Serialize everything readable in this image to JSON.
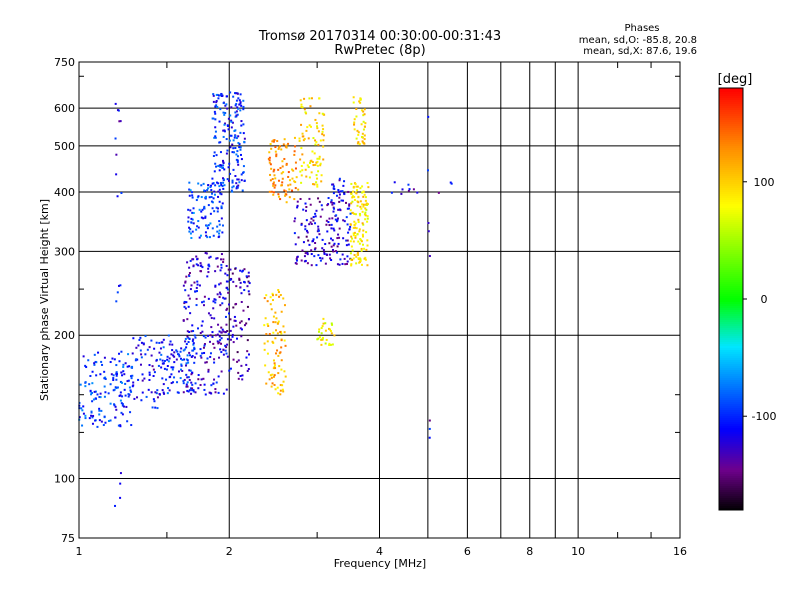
{
  "chart_data": {
    "type": "scatter",
    "title": "Tromsø 20170314 00:30:00-00:31:43",
    "subtitle": "RwPretec (8p)",
    "xlabel": "Frequency [MHz]",
    "ylabel": "Stationary phase Virtual Height [km]",
    "x_scale": "log",
    "y_scale": "log",
    "xlim": [
      1,
      16
    ],
    "ylim": [
      75,
      750
    ],
    "x_ticks": [
      "1",
      "2",
      "4",
      "6",
      "8",
      "10",
      "16"
    ],
    "y_ticks": [
      "75",
      "100",
      "200",
      "300",
      "400",
      "500",
      "600",
      "750"
    ],
    "grid": true,
    "stats": {
      "heading": "Phases",
      "o_line": "mean, sd,O: -85.8, 20.8",
      "x_line": "mean, sd,X:  87.6, 19.6"
    },
    "colorbar": {
      "label": "[deg]",
      "range": [
        -180,
        180
      ],
      "ticks": [
        "100",
        "0",
        "-100"
      ]
    },
    "clusters": [
      {
        "fmin": 1.0,
        "fmax": 1.28,
        "hmin": 128,
        "hmax": 185,
        "phase": -95,
        "n": 150
      },
      {
        "fmin": 1.28,
        "fmax": 1.45,
        "hmin": 140,
        "hmax": 200,
        "phase": -110,
        "n": 60
      },
      {
        "fmin": 1.45,
        "fmax": 1.72,
        "hmin": 150,
        "hmax": 200,
        "phase": -100,
        "n": 110
      },
      {
        "fmin": 1.62,
        "fmax": 2.0,
        "hmin": 150,
        "hmax": 300,
        "phase": -120,
        "n": 220
      },
      {
        "fmin": 1.65,
        "fmax": 1.95,
        "hmin": 320,
        "hmax": 420,
        "phase": -90,
        "n": 110
      },
      {
        "fmin": 1.85,
        "fmax": 2.15,
        "hmin": 400,
        "hmax": 650,
        "phase": -100,
        "n": 190
      },
      {
        "fmin": 1.95,
        "fmax": 2.2,
        "hmin": 160,
        "hmax": 280,
        "phase": -130,
        "n": 90
      },
      {
        "fmin": 2.35,
        "fmax": 2.6,
        "hmin": 150,
        "hmax": 250,
        "phase": 110,
        "n": 90
      },
      {
        "fmin": 2.4,
        "fmax": 2.75,
        "hmin": 380,
        "hmax": 520,
        "phase": 125,
        "n": 90
      },
      {
        "fmin": 2.75,
        "fmax": 3.1,
        "hmin": 410,
        "hmax": 630,
        "phase": 95,
        "n": 90
      },
      {
        "fmin": 2.7,
        "fmax": 3.5,
        "hmin": 280,
        "hmax": 390,
        "phase": -125,
        "n": 160
      },
      {
        "fmin": 3.0,
        "fmax": 3.25,
        "hmin": 190,
        "hmax": 220,
        "phase": 80,
        "n": 30
      },
      {
        "fmin": 3.5,
        "fmax": 3.8,
        "hmin": 280,
        "hmax": 420,
        "phase": 90,
        "n": 130
      },
      {
        "fmin": 3.55,
        "fmax": 3.75,
        "hmin": 500,
        "hmax": 640,
        "phase": 95,
        "n": 40
      },
      {
        "fmin": 3.2,
        "fmax": 3.5,
        "hmin": 350,
        "hmax": 430,
        "phase": -115,
        "n": 30
      },
      {
        "fmin": 4.2,
        "fmax": 5.6,
        "hmin": 390,
        "hmax": 420,
        "phase": -120,
        "n": 12
      },
      {
        "fmin": 1.18,
        "fmax": 1.22,
        "hmin": 80,
        "hmax": 640,
        "phase": -115,
        "n": 25
      },
      {
        "fmin": 5.0,
        "fmax": 5.05,
        "hmin": 120,
        "hmax": 640,
        "phase": -120,
        "n": 8
      }
    ]
  }
}
